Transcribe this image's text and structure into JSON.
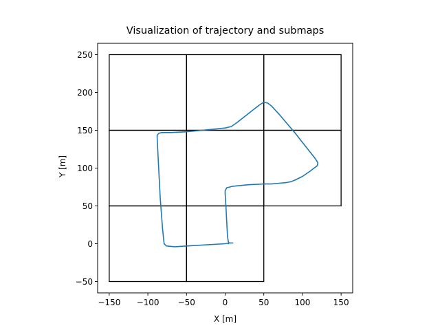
{
  "chart_data": {
    "type": "line",
    "title": "Visualization of trajectory and submaps",
    "xlabel": "X [m]",
    "ylabel": "Y [m]",
    "xlim": [
      -165,
      165
    ],
    "ylim": [
      -65,
      265
    ],
    "x_ticks": [
      -150,
      -100,
      -50,
      0,
      50,
      100,
      150
    ],
    "y_ticks": [
      -50,
      0,
      50,
      100,
      150,
      200,
      250
    ],
    "grid": false,
    "legend": "none",
    "submaps": [
      {
        "x": [
          -150,
          -50
        ],
        "y": [
          -50,
          50
        ]
      },
      {
        "x": [
          -50,
          50
        ],
        "y": [
          -50,
          50
        ]
      },
      {
        "x": [
          -150,
          -50
        ],
        "y": [
          50,
          150
        ]
      },
      {
        "x": [
          -50,
          50
        ],
        "y": [
          50,
          150
        ]
      },
      {
        "x": [
          50,
          150
        ],
        "y": [
          50,
          150
        ]
      },
      {
        "x": [
          -150,
          -50
        ],
        "y": [
          150,
          250
        ]
      },
      {
        "x": [
          -50,
          50
        ],
        "y": [
          150,
          250
        ]
      },
      {
        "x": [
          50,
          150
        ],
        "y": [
          150,
          250
        ]
      }
    ],
    "series": [
      {
        "color": "#1f77b4",
        "x": [
          10,
          5,
          0,
          -50,
          -65,
          -76,
          -79,
          -81,
          -84,
          -86,
          -88,
          -88,
          -86,
          -82,
          -70,
          -50,
          -30,
          -10,
          0,
          8,
          15,
          25,
          35,
          45,
          50,
          55,
          60,
          70,
          80,
          90,
          100,
          110,
          117,
          120,
          119,
          115,
          110,
          100,
          90,
          85,
          80,
          70,
          60,
          50,
          30,
          10,
          2,
          0,
          0,
          1,
          2,
          3,
          4,
          5,
          4
        ],
        "y": [
          1,
          1,
          0,
          -3,
          -4,
          -3,
          0,
          20,
          60,
          100,
          140,
          143,
          146,
          147,
          147,
          148,
          150,
          152,
          153,
          155,
          160,
          168,
          176,
          184,
          187,
          186,
          182,
          171,
          159,
          147,
          134,
          121,
          112,
          107,
          103,
          100,
          96,
          89,
          84,
          82,
          81,
          80,
          79,
          79,
          78,
          76,
          74,
          70,
          66,
          50,
          30,
          10,
          3,
          1,
          0
        ]
      }
    ]
  }
}
